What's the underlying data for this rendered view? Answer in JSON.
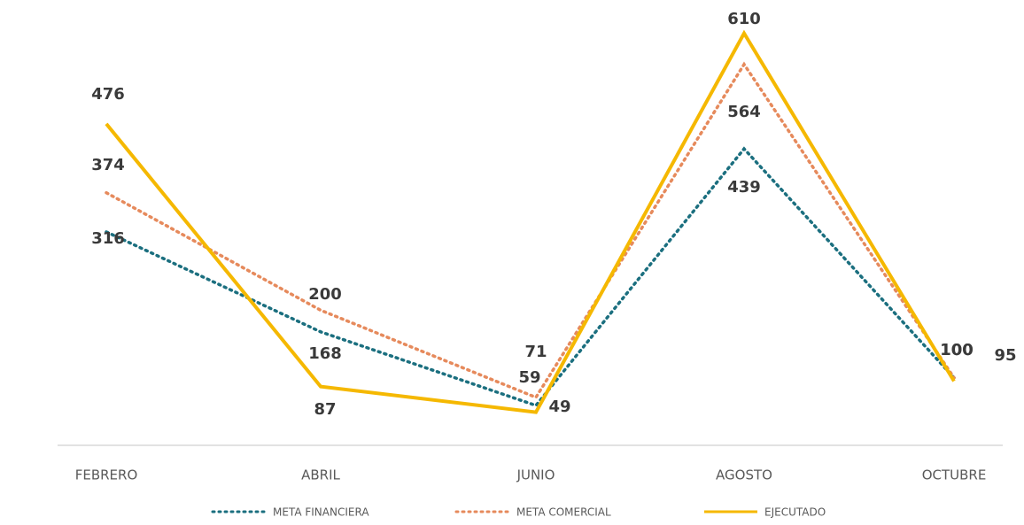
{
  "chart_data": {
    "type": "line",
    "categories": [
      "FEBRERO",
      "ABRIL",
      "JUNIO",
      "AGOSTO",
      "OCTUBRE"
    ],
    "ylim": [
      0,
      620
    ],
    "series": [
      {
        "name": "META FINANCIERA",
        "color": "#1b6f7f",
        "dash": "dotted",
        "values": [
          316,
          168,
          59,
          439,
          100
        ]
      },
      {
        "name": "META COMERCIAL",
        "color": "#e68a5c",
        "dash": "dotted",
        "values": [
          374,
          200,
          71,
          564,
          100
        ]
      },
      {
        "name": "EJECUTADO",
        "color": "#f5b800",
        "dash": "solid",
        "values": [
          476,
          87,
          49,
          610,
          95
        ]
      }
    ]
  }
}
